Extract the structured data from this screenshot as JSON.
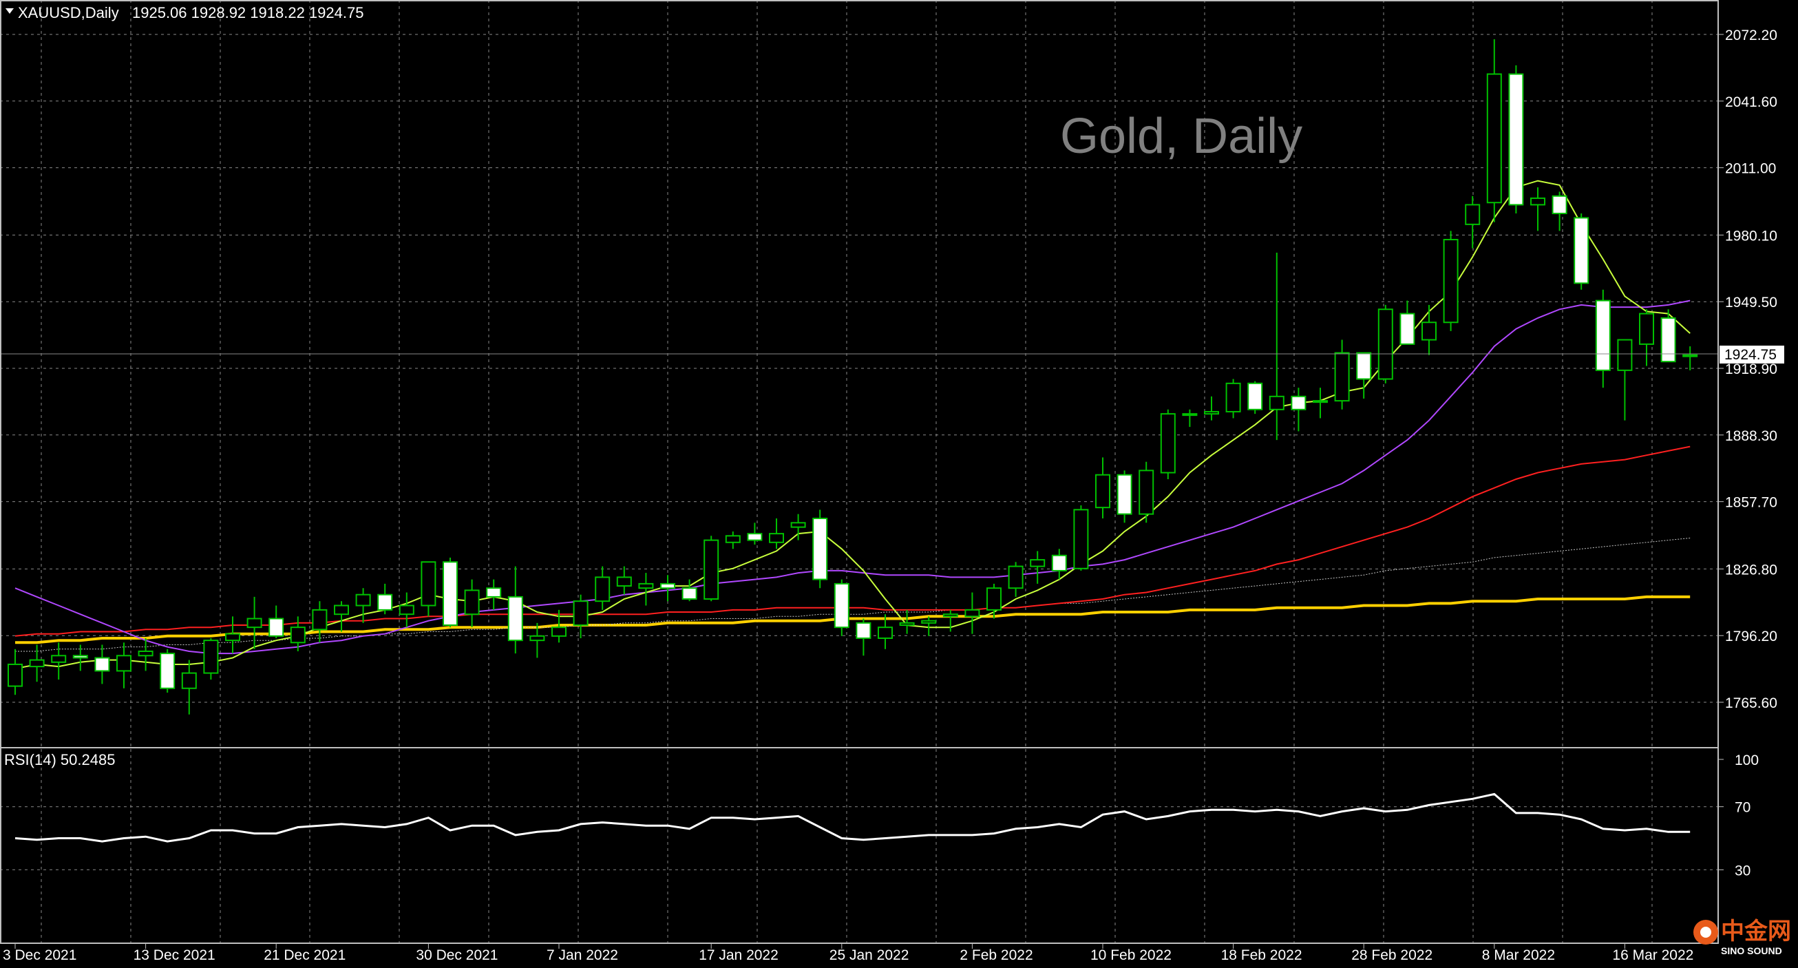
{
  "header": {
    "symbol": "XAUUSD,Daily",
    "ohlc": "1925.06 1928.92 1918.22 1924.75"
  },
  "watermark": "Gold, Daily",
  "current_price_label": "1924.75",
  "rsi_label": "RSI(14) 50.2485",
  "logo": {
    "text": "中金网",
    "subtext": "SINO SOUND"
  },
  "colors": {
    "background": "#000000",
    "grid": "#8a8a8a",
    "candle_up_border": "#00c000",
    "candle_down_fill": "#ffffff",
    "ma5": "#c8ff3c",
    "ma20": "#b048ff",
    "ma50": "#ff2020",
    "ma100": "#c8c8c8",
    "ma200": "#ffd000",
    "rsi": "#ffffff"
  },
  "chart_data": {
    "type": "candlestick",
    "symbol": "XAUUSD",
    "timeframe": "Daily",
    "price_axis": {
      "ticks": [
        2072.2,
        2041.6,
        2011.0,
        1980.1,
        1949.5,
        1918.9,
        1888.3,
        1857.7,
        1826.8,
        1796.2,
        1765.6
      ],
      "tick_labels": [
        "2072.20",
        "2041.60",
        "2011.00",
        "1980.10",
        "1949.50",
        "1918.90",
        "1888.30",
        "1857.70",
        "1826.80",
        "1796.20",
        "1765.60"
      ],
      "range": [
        1755,
        2078
      ]
    },
    "date_labels": [
      {
        "i": 0,
        "label": "3 Dec 2021"
      },
      {
        "i": 6,
        "label": "13 Dec 2021"
      },
      {
        "i": 12,
        "label": "21 Dec 2021"
      },
      {
        "i": 19,
        "label": "30 Dec 2021"
      },
      {
        "i": 25,
        "label": "7 Jan 2022"
      },
      {
        "i": 32,
        "label": "17 Jan 2022"
      },
      {
        "i": 38,
        "label": "25 Jan 2022"
      },
      {
        "i": 44,
        "label": "2 Feb 2022"
      },
      {
        "i": 50,
        "label": "10 Feb 2022"
      },
      {
        "i": 56,
        "label": "18 Feb 2022"
      },
      {
        "i": 62,
        "label": "28 Feb 2022"
      },
      {
        "i": 68,
        "label": "8 Mar 2022"
      },
      {
        "i": 74,
        "label": "16 Mar 2022"
      }
    ],
    "candles": [
      [
        1773,
        1790,
        1769,
        1783
      ],
      [
        1782,
        1792,
        1775,
        1785
      ],
      [
        1784,
        1793,
        1776,
        1787
      ],
      [
        1787,
        1792,
        1780,
        1786
      ],
      [
        1786,
        1792,
        1774,
        1780
      ],
      [
        1780,
        1793,
        1772,
        1787
      ],
      [
        1787,
        1795,
        1780,
        1789
      ],
      [
        1788,
        1790,
        1770,
        1772
      ],
      [
        1772,
        1785,
        1760,
        1779
      ],
      [
        1779,
        1795,
        1776,
        1794
      ],
      [
        1794,
        1805,
        1788,
        1797
      ],
      [
        1800,
        1814,
        1790,
        1804
      ],
      [
        1804,
        1810,
        1795,
        1796
      ],
      [
        1793,
        1805,
        1789,
        1800
      ],
      [
        1799,
        1812,
        1793,
        1808
      ],
      [
        1806,
        1812,
        1798,
        1810
      ],
      [
        1810,
        1818,
        1802,
        1815
      ],
      [
        1815,
        1820,
        1806,
        1808
      ],
      [
        1806,
        1816,
        1800,
        1810
      ],
      [
        1810,
        1830,
        1805,
        1830
      ],
      [
        1830,
        1832,
        1800,
        1801
      ],
      [
        1806,
        1822,
        1800,
        1817
      ],
      [
        1818,
        1822,
        1808,
        1814
      ],
      [
        1814,
        1828,
        1788,
        1794
      ],
      [
        1794,
        1802,
        1786,
        1796
      ],
      [
        1796,
        1808,
        1793,
        1800
      ],
      [
        1801,
        1815,
        1795,
        1812
      ],
      [
        1812,
        1828,
        1808,
        1823
      ],
      [
        1819,
        1828,
        1815,
        1823
      ],
      [
        1818,
        1825,
        1810,
        1820
      ],
      [
        1820,
        1824,
        1812,
        1818
      ],
      [
        1818,
        1822,
        1812,
        1813
      ],
      [
        1813,
        1842,
        1812,
        1840
      ],
      [
        1839,
        1844,
        1836,
        1842
      ],
      [
        1843,
        1848,
        1838,
        1840
      ],
      [
        1839,
        1850,
        1836,
        1843
      ],
      [
        1846,
        1852,
        1840,
        1848
      ],
      [
        1850,
        1854,
        1818,
        1822
      ],
      [
        1820,
        1822,
        1796,
        1800
      ],
      [
        1802,
        1804,
        1787,
        1795
      ],
      [
        1795,
        1806,
        1790,
        1800
      ],
      [
        1801,
        1808,
        1797,
        1802
      ],
      [
        1802,
        1805,
        1796,
        1803
      ],
      [
        1805,
        1808,
        1798,
        1806
      ],
      [
        1805,
        1816,
        1797,
        1808
      ],
      [
        1808,
        1820,
        1804,
        1818
      ],
      [
        1818,
        1830,
        1814,
        1828
      ],
      [
        1828,
        1835,
        1820,
        1831
      ],
      [
        1833,
        1836,
        1822,
        1826
      ],
      [
        1827,
        1856,
        1826,
        1854
      ],
      [
        1855,
        1878,
        1850,
        1870
      ],
      [
        1870,
        1872,
        1848,
        1852
      ],
      [
        1852,
        1876,
        1848,
        1872
      ],
      [
        1871,
        1900,
        1868,
        1898
      ],
      [
        1898,
        1900,
        1892,
        1898
      ],
      [
        1898,
        1906,
        1895,
        1899
      ],
      [
        1899,
        1914,
        1896,
        1912
      ],
      [
        1912,
        1913,
        1898,
        1900
      ],
      [
        1900,
        1972,
        1886,
        1906
      ],
      [
        1906,
        1910,
        1890,
        1900
      ],
      [
        1904,
        1910,
        1896,
        1904
      ],
      [
        1904,
        1932,
        1900,
        1926
      ],
      [
        1926,
        1924,
        1905,
        1914
      ],
      [
        1914,
        1948,
        1912,
        1946
      ],
      [
        1944,
        1950,
        1930,
        1930
      ],
      [
        1932,
        1948,
        1925,
        1940
      ],
      [
        1940,
        1982,
        1936,
        1978
      ],
      [
        1985,
        1998,
        1974,
        1994
      ],
      [
        1995,
        2070,
        1986,
        2054
      ],
      [
        2054,
        2058,
        1990,
        1994
      ],
      [
        1994,
        2002,
        1982,
        1997
      ],
      [
        1998,
        2000,
        1982,
        1990
      ],
      [
        1988,
        1990,
        1955,
        1958
      ],
      [
        1950,
        1955,
        1910,
        1918
      ],
      [
        1918,
        1932,
        1895,
        1932
      ],
      [
        1930,
        1946,
        1920,
        1944
      ],
      [
        1942,
        1946,
        1922,
        1922
      ],
      [
        1925,
        1929,
        1918,
        1925
      ]
    ],
    "ma5": [
      1781,
      1783,
      1782,
      1784,
      1785,
      1785,
      1784,
      1783,
      1783,
      1784,
      1786,
      1791,
      1794,
      1796,
      1800,
      1803,
      1806,
      1808,
      1811,
      1815,
      1813,
      1812,
      1814,
      1812,
      1807,
      1805,
      1805,
      1807,
      1813,
      1816,
      1819,
      1819,
      1825,
      1827,
      1831,
      1835,
      1843,
      1844,
      1836,
      1826,
      1813,
      1801,
      1800,
      1800,
      1803,
      1807,
      1813,
      1817,
      1822,
      1829,
      1835,
      1844,
      1851,
      1860,
      1871,
      1879,
      1886,
      1893,
      1901,
      1903,
      1904,
      1908,
      1910,
      1922,
      1933,
      1945,
      1954,
      1970,
      1988,
      2002,
      2005,
      2003,
      1985,
      1969,
      1952,
      1945,
      1944,
      1935
    ],
    "ma20": [
      1818,
      1814,
      1810,
      1806,
      1802,
      1798,
      1794,
      1791,
      1789,
      1788,
      1788,
      1789,
      1790,
      1791,
      1793,
      1794,
      1796,
      1797,
      1800,
      1803,
      1805,
      1807,
      1808,
      1809,
      1810,
      1811,
      1812,
      1813,
      1815,
      1816,
      1817,
      1818,
      1820,
      1821,
      1822,
      1823,
      1825,
      1826,
      1826,
      1825,
      1824,
      1824,
      1824,
      1823,
      1823,
      1823,
      1824,
      1825,
      1826,
      1828,
      1829,
      1831,
      1834,
      1837,
      1840,
      1843,
      1846,
      1850,
      1854,
      1858,
      1862,
      1866,
      1872,
      1879,
      1886,
      1895,
      1906,
      1917,
      1929,
      1937,
      1942,
      1946,
      1948,
      1947,
      1947,
      1947,
      1948,
      1950
    ],
    "ma50": [
      1796,
      1797,
      1797,
      1798,
      1798,
      1798,
      1799,
      1799,
      1800,
      1800,
      1801,
      1801,
      1801,
      1802,
      1802,
      1803,
      1803,
      1804,
      1804,
      1805,
      1805,
      1806,
      1806,
      1806,
      1806,
      1806,
      1806,
      1806,
      1806,
      1806,
      1807,
      1807,
      1807,
      1808,
      1808,
      1809,
      1809,
      1809,
      1809,
      1809,
      1808,
      1808,
      1808,
      1808,
      1808,
      1809,
      1809,
      1810,
      1811,
      1812,
      1813,
      1815,
      1816,
      1818,
      1820,
      1822,
      1824,
      1826,
      1829,
      1831,
      1834,
      1837,
      1840,
      1843,
      1846,
      1850,
      1855,
      1860,
      1864,
      1868,
      1871,
      1873,
      1875,
      1876,
      1877,
      1879,
      1881,
      1883
    ],
    "ma100": [
      1789,
      1789,
      1790,
      1790,
      1790,
      1791,
      1791,
      1792,
      1792,
      1793,
      1793,
      1794,
      1794,
      1795,
      1795,
      1796,
      1796,
      1797,
      1797,
      1798,
      1798,
      1799,
      1799,
      1800,
      1800,
      1800,
      1801,
      1801,
      1802,
      1802,
      1803,
      1803,
      1804,
      1804,
      1804,
      1805,
      1805,
      1806,
      1806,
      1806,
      1807,
      1807,
      1807,
      1808,
      1808,
      1809,
      1809,
      1810,
      1811,
      1811,
      1812,
      1813,
      1814,
      1815,
      1816,
      1817,
      1818,
      1819,
      1820,
      1821,
      1822,
      1823,
      1824,
      1826,
      1827,
      1828,
      1829,
      1830,
      1832,
      1833,
      1834,
      1835,
      1836,
      1837,
      1838,
      1839,
      1840,
      1841
    ],
    "ma200": [
      1793,
      1793,
      1794,
      1794,
      1795,
      1795,
      1795,
      1796,
      1796,
      1796,
      1797,
      1797,
      1797,
      1797,
      1798,
      1798,
      1798,
      1799,
      1799,
      1799,
      1800,
      1800,
      1800,
      1800,
      1800,
      1801,
      1801,
      1801,
      1801,
      1801,
      1802,
      1802,
      1802,
      1802,
      1803,
      1803,
      1803,
      1803,
      1804,
      1804,
      1804,
      1804,
      1805,
      1805,
      1805,
      1805,
      1806,
      1806,
      1806,
      1806,
      1807,
      1807,
      1807,
      1807,
      1808,
      1808,
      1808,
      1808,
      1809,
      1809,
      1809,
      1809,
      1810,
      1810,
      1810,
      1811,
      1811,
      1812,
      1812,
      1812,
      1813,
      1813,
      1813,
      1813,
      1813,
      1814,
      1814,
      1814
    ],
    "rsi": {
      "name": "RSI(14)",
      "value": 50.2485,
      "ticks": [
        100,
        70,
        30
      ],
      "tick_labels": [
        "100",
        "70",
        "30"
      ],
      "range": [
        0,
        100
      ],
      "values": [
        50,
        49,
        50,
        50,
        48,
        50,
        51,
        48,
        50,
        55,
        55,
        53,
        53,
        57,
        58,
        59,
        58,
        57,
        59,
        63,
        55,
        58,
        58,
        52,
        54,
        55,
        59,
        60,
        59,
        58,
        58,
        56,
        63,
        63,
        62,
        63,
        64,
        57,
        50,
        49,
        50,
        51,
        52,
        52,
        52,
        53,
        56,
        57,
        59,
        57,
        65,
        67,
        62,
        64,
        67,
        68,
        68,
        67,
        68,
        67,
        64,
        67,
        69,
        67,
        68,
        71,
        73,
        75,
        78,
        66,
        66,
        65,
        62,
        56,
        55,
        56,
        54,
        54
      ]
    }
  }
}
